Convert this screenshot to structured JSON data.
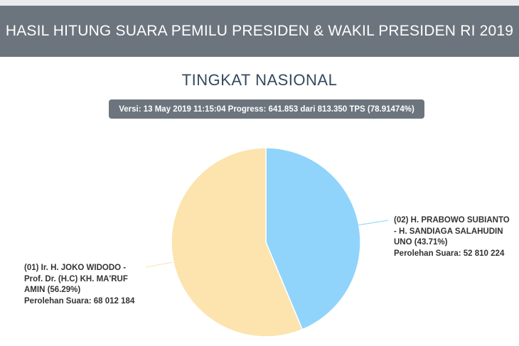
{
  "header": {
    "title": "HASIL HITUNG SUARA PEMILU PRESIDEN & WAKIL PRESIDEN RI 2019"
  },
  "subtitle": "TINGKAT NASIONAL",
  "version_bar": "Versi: 13 May 2019 11:15:04 Progress: 641.853 dari 813.350 TPS (78.91474%)",
  "chart_data": {
    "type": "pie",
    "title": "",
    "slices": [
      {
        "label_lines": [
          "(02) H. PRABOWO SUBIANTO",
          "- H. SANDIAGA SALAHUDIN",
          "UNO (43.71%)",
          "Perolehan Suara: 52 810 224"
        ],
        "percent": 43.71,
        "votes": 52810224,
        "color": "#90d4fb"
      },
      {
        "label_lines": [
          "(01) Ir. H. JOKO WIDODO -",
          "Prof. Dr. (H.C) KH. MA'RUF",
          "AMIN (56.29%)",
          "Perolehan Suara: 68 012 184"
        ],
        "percent": 56.29,
        "votes": 68012184,
        "color": "#fde3ae"
      }
    ],
    "start_angle": "top",
    "direction": "clockwise"
  }
}
